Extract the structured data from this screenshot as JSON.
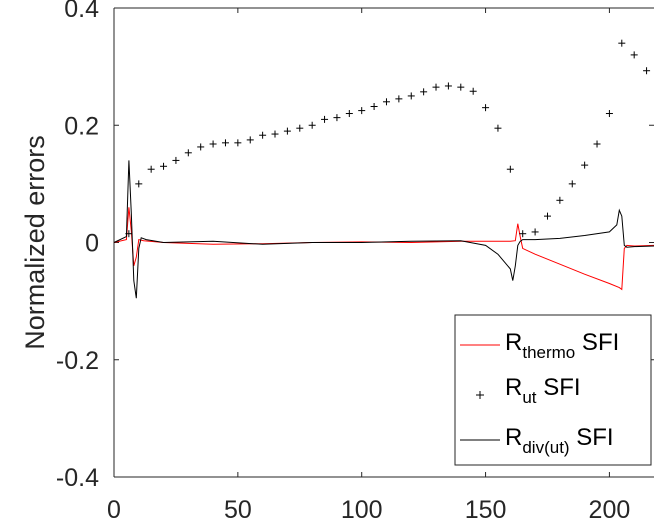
{
  "chart_data": {
    "type": "line",
    "title": "",
    "xlabel": "",
    "ylabel": "Normalized errors",
    "xlim": [
      0,
      218
    ],
    "ylim": [
      -0.4,
      0.4
    ],
    "xticks": [
      0,
      50,
      100,
      150,
      200
    ],
    "yticks": [
      -0.4,
      -0.2,
      0,
      0.2,
      0.4
    ],
    "xtick_labels": [
      "0",
      "50",
      "100",
      "150",
      "200"
    ],
    "ytick_labels": [
      "-0.4",
      "-0.2",
      "0",
      "0.2",
      "0.4"
    ],
    "grid": false,
    "legend": {
      "placement": "bottom-right",
      "entries": [
        {
          "base": "R",
          "sub": "thermo",
          "suffix": " SFI"
        },
        {
          "base": "R",
          "sub": "ut",
          "suffix": " SFI"
        },
        {
          "base": "R",
          "sub": "div(ut)",
          "suffix": " SFI"
        }
      ]
    },
    "series": [
      {
        "style": "line",
        "color": "#ff0000",
        "x": [
          0,
          5,
          6,
          7,
          8,
          9,
          10,
          12,
          20,
          40,
          60,
          80,
          100,
          120,
          140,
          160,
          162,
          163,
          164,
          165,
          170,
          180,
          190,
          200,
          204,
          205,
          206,
          207,
          210,
          218
        ],
        "y": [
          0,
          0.005,
          0.06,
          0.02,
          -0.04,
          -0.025,
          0.005,
          0.003,
          0.0,
          -0.003,
          -0.002,
          0.0,
          0.001,
          0.0,
          0.002,
          0.002,
          0.003,
          0.032,
          0.01,
          -0.01,
          -0.02,
          -0.037,
          -0.054,
          -0.07,
          -0.077,
          -0.08,
          -0.01,
          -0.005,
          -0.006,
          -0.005
        ]
      },
      {
        "style": "markers",
        "marker": "+",
        "color": "#000000",
        "x": [
          6,
          10,
          15,
          20,
          25,
          30,
          35,
          40,
          45,
          50,
          55,
          60,
          65,
          70,
          75,
          80,
          85,
          90,
          95,
          100,
          105,
          110,
          115,
          120,
          125,
          130,
          135,
          140,
          145,
          150,
          155,
          160,
          165,
          170,
          175,
          180,
          185,
          190,
          195,
          200,
          205,
          210,
          215
        ],
        "y": [
          0.015,
          0.1,
          0.125,
          0.13,
          0.14,
          0.153,
          0.163,
          0.168,
          0.17,
          0.17,
          0.175,
          0.183,
          0.185,
          0.19,
          0.195,
          0.2,
          0.21,
          0.213,
          0.22,
          0.225,
          0.232,
          0.24,
          0.245,
          0.25,
          0.257,
          0.265,
          0.267,
          0.265,
          0.258,
          0.23,
          0.195,
          0.125,
          0.015,
          0.018,
          0.045,
          0.072,
          0.1,
          0.132,
          0.168,
          0.22,
          0.34,
          0.32,
          0.293
        ]
      },
      {
        "style": "line",
        "color": "#000000",
        "x": [
          0,
          5,
          6,
          7,
          8,
          9,
          10,
          11,
          13,
          20,
          40,
          60,
          80,
          100,
          120,
          140,
          150,
          155,
          160,
          161,
          162,
          163,
          164,
          165,
          170,
          180,
          190,
          200,
          203,
          204,
          205,
          206,
          207,
          210,
          218
        ],
        "y": [
          0,
          0.01,
          0.14,
          0.05,
          -0.065,
          -0.095,
          -0.01,
          0.008,
          0.005,
          0.0,
          0.002,
          -0.003,
          0.0,
          0.0,
          0.002,
          0.003,
          -0.005,
          -0.02,
          -0.045,
          -0.065,
          -0.04,
          -0.005,
          0.002,
          0.005,
          0.005,
          0.007,
          0.012,
          0.018,
          0.03,
          0.055,
          0.045,
          -0.005,
          -0.008,
          -0.007,
          -0.006
        ]
      }
    ]
  }
}
